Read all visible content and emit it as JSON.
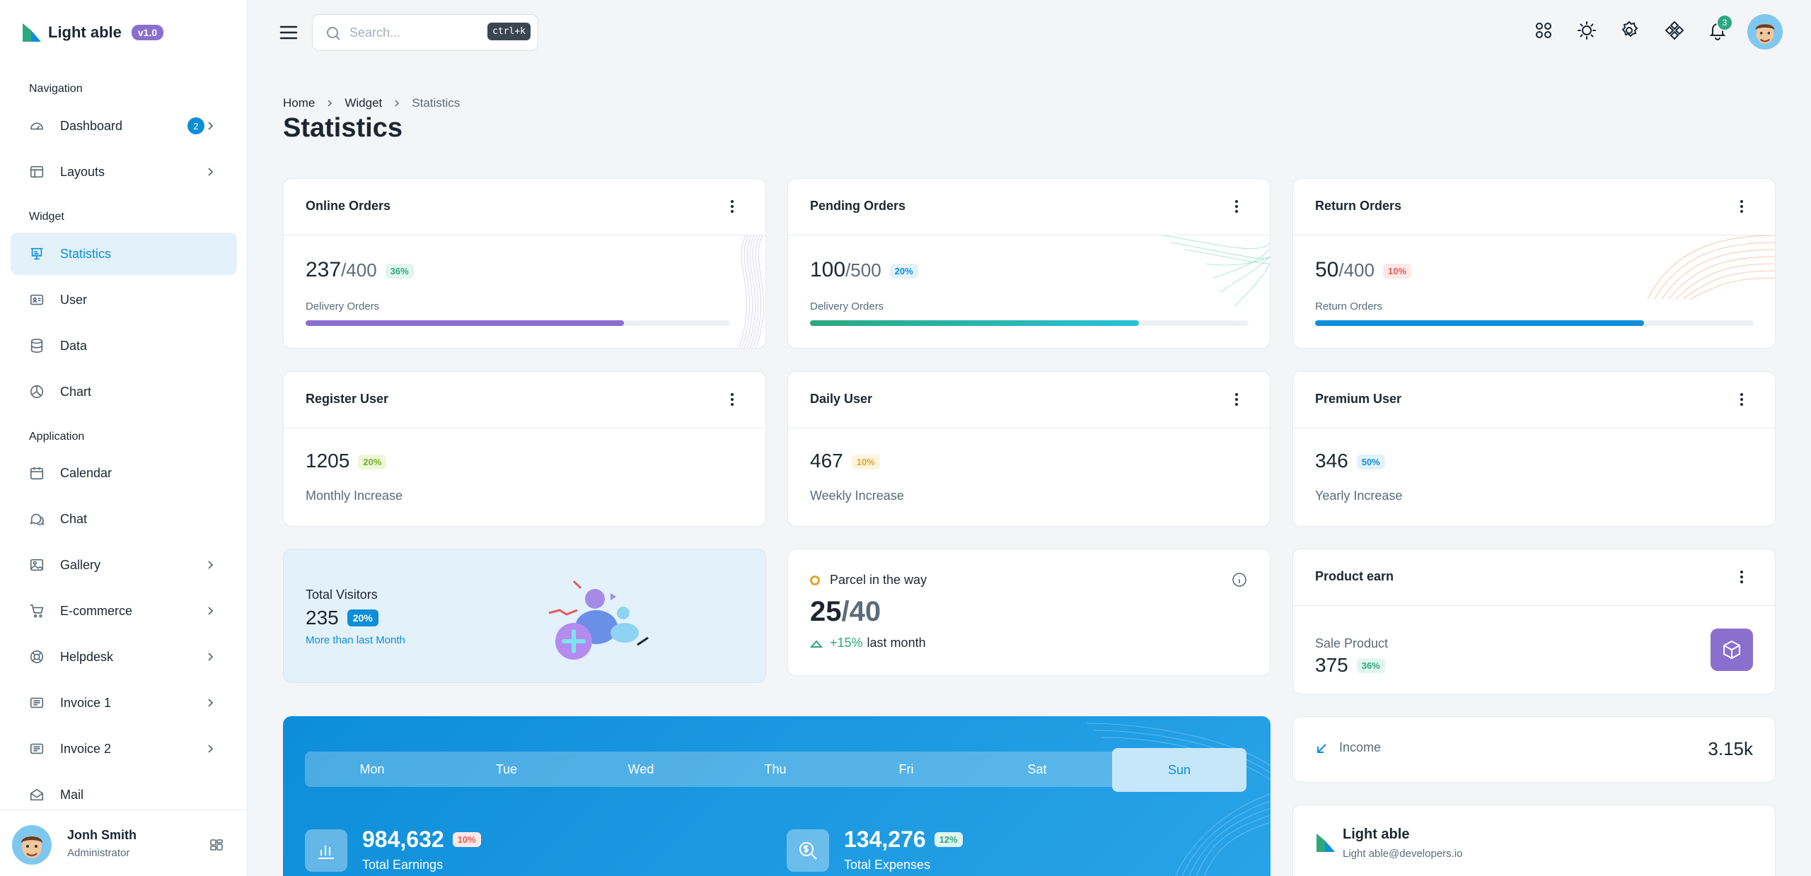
{
  "brand": {
    "name": "Light able",
    "version": "v1.0"
  },
  "sidebar": {
    "captions": [
      "Navigation",
      "Widget",
      "Application"
    ],
    "items": [
      {
        "label": "Dashboard",
        "icon": "speedometer-icon",
        "badge": "2",
        "chevron": true
      },
      {
        "label": "Layouts",
        "icon": "layout-icon",
        "chevron": true
      },
      {
        "label": "Statistics",
        "icon": "presentation-icon",
        "active": true
      },
      {
        "label": "User",
        "icon": "user-card-icon"
      },
      {
        "label": "Data",
        "icon": "database-icon"
      },
      {
        "label": "Chart",
        "icon": "pie-chart-icon"
      },
      {
        "label": "Calendar",
        "icon": "calendar-icon"
      },
      {
        "label": "Chat",
        "icon": "chat-icon"
      },
      {
        "label": "Gallery",
        "icon": "image-icon",
        "chevron": true
      },
      {
        "label": "E-commerce",
        "icon": "cart-icon",
        "chevron": true
      },
      {
        "label": "Helpdesk",
        "icon": "lifebuoy-icon",
        "chevron": true
      },
      {
        "label": "Invoice 1",
        "icon": "invoice-icon",
        "chevron": true
      },
      {
        "label": "Invoice 2",
        "icon": "invoice-icon",
        "chevron": true
      },
      {
        "label": "Mail",
        "icon": "mail-icon"
      }
    ],
    "user": {
      "name": "Jonh Smith",
      "role": "Administrator"
    }
  },
  "header": {
    "search_placeholder": "Search...",
    "search_shortcut": "ctrl+k",
    "notification_count": "3"
  },
  "breadcrumb": {
    "items": [
      "Home",
      "Widget",
      "Statistics"
    ]
  },
  "page": {
    "title": "Statistics"
  },
  "order_cards": [
    {
      "title": "Online Orders",
      "value": "237",
      "total": "/400",
      "pill": "36%",
      "label": "Delivery Orders",
      "progress": 0.75,
      "color": "#8a6fcf"
    },
    {
      "title": "Pending Orders",
      "value": "100",
      "total": "/500",
      "pill": "20%",
      "label": "Delivery Orders",
      "progress": 0.75,
      "color": "#2ca87f"
    },
    {
      "title": "Return Orders",
      "value": "50",
      "total": "/400",
      "pill": "10%",
      "label": "Return Orders",
      "progress": 0.75,
      "color": "#0d8ed9"
    }
  ],
  "user_cards": [
    {
      "title": "Register User",
      "value": "1205",
      "pill": "20%",
      "label": "Monthly Increase"
    },
    {
      "title": "Daily User",
      "value": "467",
      "pill": "10%",
      "label": "Weekly Increase"
    },
    {
      "title": "Premium User",
      "value": "346",
      "pill": "50%",
      "label": "Yearly Increase"
    }
  ],
  "visitors": {
    "title": "Total Visitors",
    "value": "235",
    "pill": "20%",
    "sub": "More than last Month"
  },
  "parcel": {
    "title": "Parcel in the way",
    "value": "25",
    "total": "/40",
    "trend": "+15%",
    "trend_label": "last month"
  },
  "product_earn": {
    "title": "Product earn",
    "label": "Sale Product",
    "value": "375",
    "pill": "36%"
  },
  "income": {
    "label": "Income",
    "value": "3.15k"
  },
  "brand_card": {
    "name": "Light able",
    "email": "Light able@developers.io"
  },
  "week": {
    "days": [
      "Mon",
      "Tue",
      "Wed",
      "Thu",
      "Fri",
      "Sat",
      "Sun"
    ],
    "active": "Sun",
    "earnings": {
      "value": "984,632",
      "pill": "10%",
      "label": "Total Earnings"
    },
    "expenses": {
      "value": "134,276",
      "pill": "12%",
      "label": "Total Expenses"
    }
  }
}
